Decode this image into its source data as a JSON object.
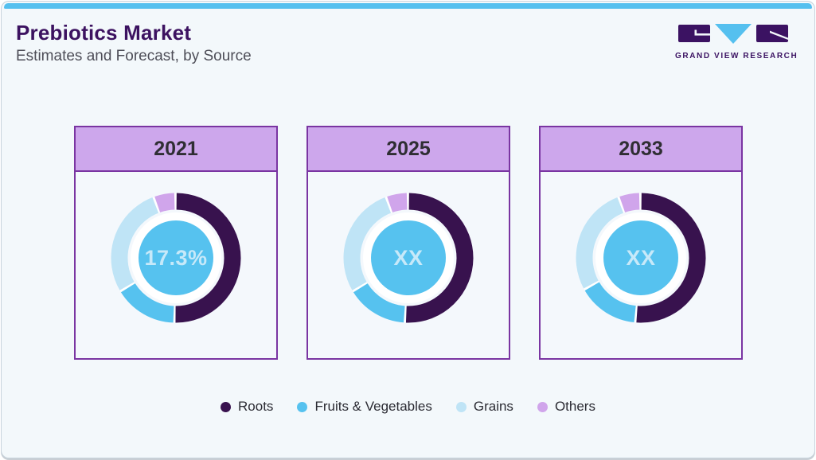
{
  "frame": {
    "accent_color": "#55C0EF",
    "background": "#F3F8FB",
    "border_color": "#C7D3DC"
  },
  "header": {
    "title": "Prebiotics Market",
    "subtitle": "Estimates and Forecast, by Source",
    "title_color": "#3C1260"
  },
  "logo": {
    "text": "GRAND VIEW RESEARCH",
    "dark_color": "#3B1262",
    "blue_color": "#55C0EF"
  },
  "card_style": {
    "border_color": "#7A35A2",
    "header_bg": "#CDA7EC",
    "body_bg": "#F4F8FC",
    "gap_white": "#FFFFFF"
  },
  "palette": {
    "Roots": "#38124E",
    "Fruits & Vegetables": "#56C2EF",
    "Grains": "#BFE4F6",
    "Others": "#D0A5EB"
  },
  "center_disc_color": "#56C2EF",
  "legend": [
    {
      "label": "Roots",
      "color": "#38124E"
    },
    {
      "label": "Fruits & Vegetables",
      "color": "#56C2EF"
    },
    {
      "label": "Grains",
      "color": "#BFE4F6"
    },
    {
      "label": "Others",
      "color": "#D0A5EB"
    }
  ],
  "chart_data": [
    {
      "type": "pie",
      "variant": "donut",
      "title": "2021",
      "center_label": "17.3%",
      "legend_position": "bottom",
      "segments": [
        {
          "name": "Roots",
          "percent": 50.5
        },
        {
          "name": "Fruits & Vegetables",
          "percent": 16
        },
        {
          "name": "Grains",
          "percent": 28
        },
        {
          "name": "Others",
          "percent": 5.5
        }
      ]
    },
    {
      "type": "pie",
      "variant": "donut",
      "title": "2025",
      "center_label": "XX",
      "legend_position": "bottom",
      "segments": [
        {
          "name": "Roots",
          "percent": 51
        },
        {
          "name": "Fruits & Vegetables",
          "percent": 15.5
        },
        {
          "name": "Grains",
          "percent": 28
        },
        {
          "name": "Others",
          "percent": 5.5
        }
      ]
    },
    {
      "type": "pie",
      "variant": "donut",
      "title": "2033",
      "center_label": "XX",
      "legend_position": "bottom",
      "segments": [
        {
          "name": "Roots",
          "percent": 51.5
        },
        {
          "name": "Fruits & Vegetables",
          "percent": 15.5
        },
        {
          "name": "Grains",
          "percent": 27.5
        },
        {
          "name": "Others",
          "percent": 5.5
        }
      ]
    }
  ]
}
